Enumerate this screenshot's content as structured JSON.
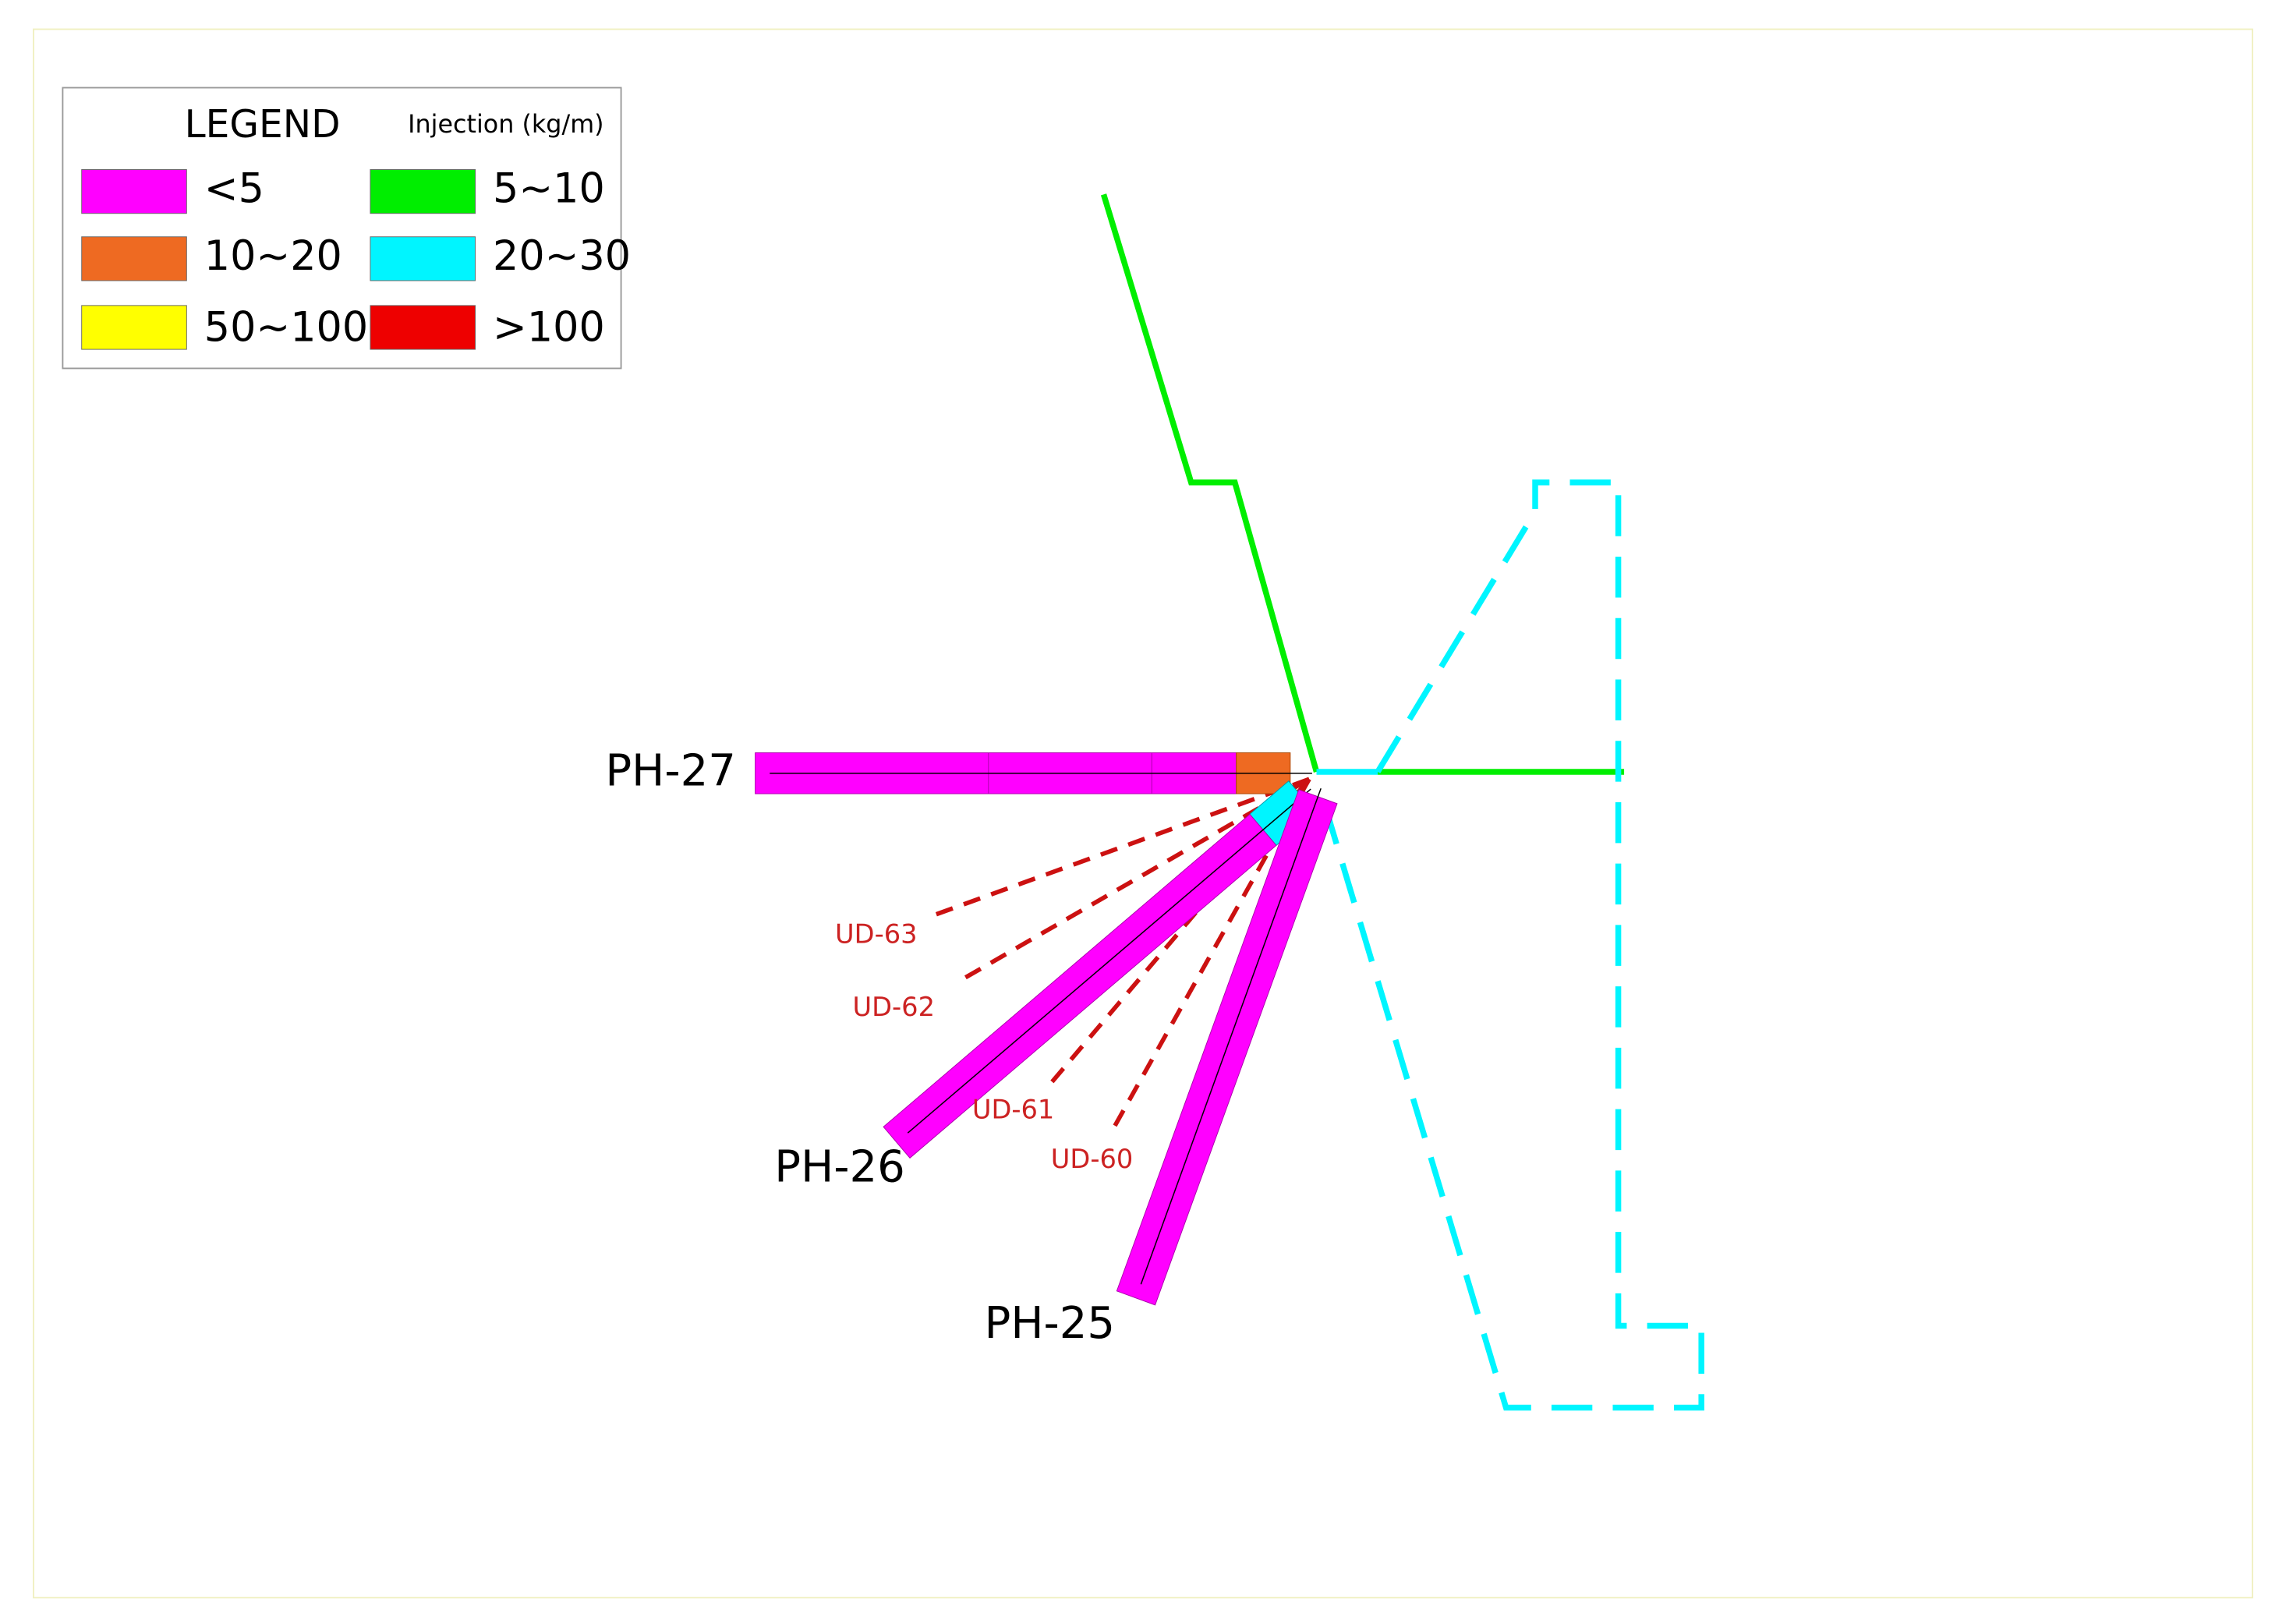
{
  "legend": {
    "title": "LEGEND",
    "unit": "Injection (kg/m)",
    "items": [
      {
        "label": "<5",
        "color": "#ff00ff"
      },
      {
        "label": "5~10",
        "color": "#00ee00"
      },
      {
        "label": "10~20",
        "color": "#ee6a22"
      },
      {
        "label": "20~30",
        "color": "#00f5ff"
      },
      {
        "label": "50~100",
        "color": "#ffff00"
      },
      {
        "label": ">100",
        "color": "#ee0000"
      }
    ]
  },
  "holes": [
    {
      "label": "PH-27"
    },
    {
      "label": "PH-26"
    },
    {
      "label": "PH-25"
    }
  ],
  "lines": [
    {
      "label": "UD-63"
    },
    {
      "label": "UD-62"
    },
    {
      "label": "UD-61"
    },
    {
      "label": "UD-60"
    }
  ]
}
